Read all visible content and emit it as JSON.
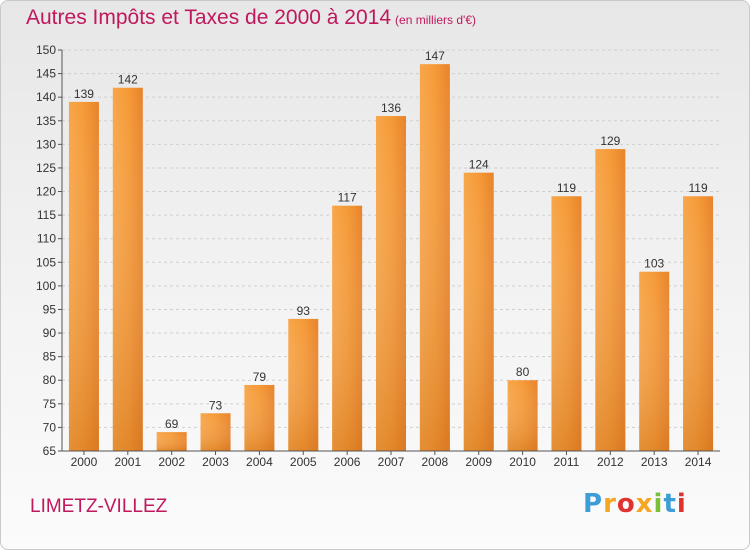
{
  "chart_data": {
    "type": "bar",
    "title": "Autres Impôts et Taxes de 2000 à 2014",
    "subtitle": "(en milliers d'€)",
    "categories": [
      "2000",
      "2001",
      "2002",
      "2003",
      "2004",
      "2005",
      "2006",
      "2007",
      "2008",
      "2009",
      "2010",
      "2011",
      "2012",
      "2013",
      "2014"
    ],
    "values": [
      139,
      142,
      69,
      73,
      79,
      93,
      117,
      136,
      147,
      124,
      80,
      119,
      129,
      103,
      119
    ],
    "ylim": [
      65,
      150
    ],
    "yticks": [
      65,
      70,
      75,
      80,
      85,
      90,
      95,
      100,
      105,
      110,
      115,
      120,
      125,
      130,
      135,
      140,
      145,
      150
    ],
    "bar_color": "#f08b2a",
    "grid": true
  },
  "commune": "LIMETZ-VILLEZ",
  "logo": {
    "letters": [
      "P",
      "r",
      "o",
      "x",
      "i",
      "t",
      "i"
    ],
    "colors": [
      "#3d9dd6",
      "#f5a623",
      "#e0322e",
      "#f5a623",
      "#7bbf3a",
      "#3d9dd6",
      "#e0322e"
    ]
  }
}
